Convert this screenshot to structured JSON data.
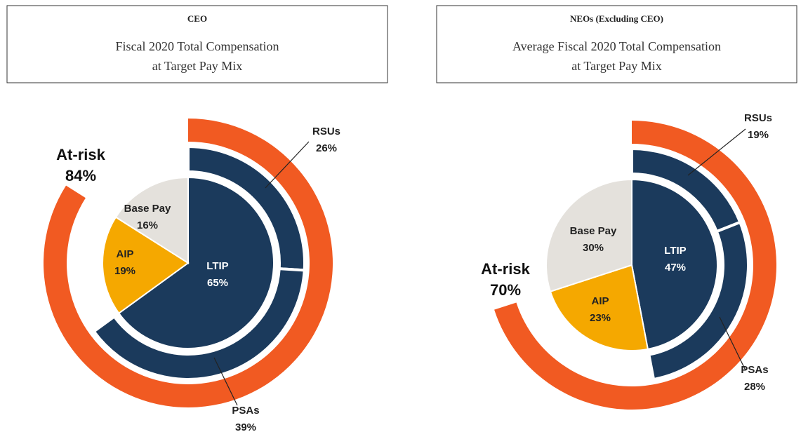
{
  "chart_data": [
    {
      "type": "pie",
      "title": "CEO",
      "subtitle": [
        "Fiscal 2020 Total Compensation",
        "at Target Pay Mix"
      ],
      "categories": [
        "LTIP",
        "AIP",
        "Base Pay"
      ],
      "values": [
        65,
        19,
        16
      ],
      "value_labels": [
        "65%",
        "19%",
        "16%"
      ],
      "colors": [
        "#1b3a5c",
        "#f5a800",
        "#e4e1dc"
      ],
      "ring": {
        "categories": [
          "RSUs",
          "PSAs"
        ],
        "values": [
          26,
          39
        ],
        "value_labels": [
          "26%",
          "39%"
        ],
        "color": "#1b3a5c"
      },
      "outer": {
        "name": "At-risk",
        "value": 84,
        "value_label": "84%",
        "color": "#f15a22"
      }
    },
    {
      "type": "pie",
      "title": "NEOs (Excluding CEO)",
      "subtitle": [
        "Average Fiscal 2020 Total Compensation",
        "at Target Pay Mix"
      ],
      "categories": [
        "LTIP",
        "AIP",
        "Base Pay"
      ],
      "values": [
        47,
        23,
        30
      ],
      "value_labels": [
        "47%",
        "23%",
        "30%"
      ],
      "colors": [
        "#1b3a5c",
        "#f5a800",
        "#e4e1dc"
      ],
      "ring": {
        "categories": [
          "RSUs",
          "PSAs"
        ],
        "values": [
          19,
          28
        ],
        "value_labels": [
          "19%",
          "28%"
        ],
        "color": "#1b3a5c"
      },
      "outer": {
        "name": "At-risk",
        "value": 70,
        "value_label": "70%",
        "color": "#f15a22"
      }
    }
  ]
}
